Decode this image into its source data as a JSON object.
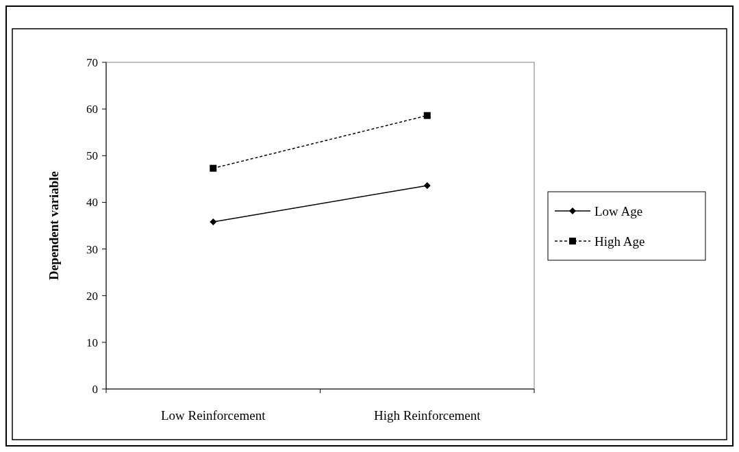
{
  "chart_data": {
    "type": "line",
    "ylabel": "Dependent variable",
    "categories": [
      "Low Reinforcement",
      "High Reinforcement"
    ],
    "series": [
      {
        "name": "Low Age",
        "color": "#000000",
        "values": [
          35.8,
          43.6
        ],
        "marker": "diamond",
        "line_style": "solid"
      },
      {
        "name": "High Age",
        "color": "#000000",
        "values": [
          47.3,
          58.6
        ],
        "marker": "square",
        "line_style": "dashed"
      }
    ],
    "ylim": [
      0,
      70
    ],
    "yticks": [
      0,
      10,
      20,
      30,
      40,
      50,
      60,
      70
    ],
    "grid": false,
    "legend": "right"
  }
}
